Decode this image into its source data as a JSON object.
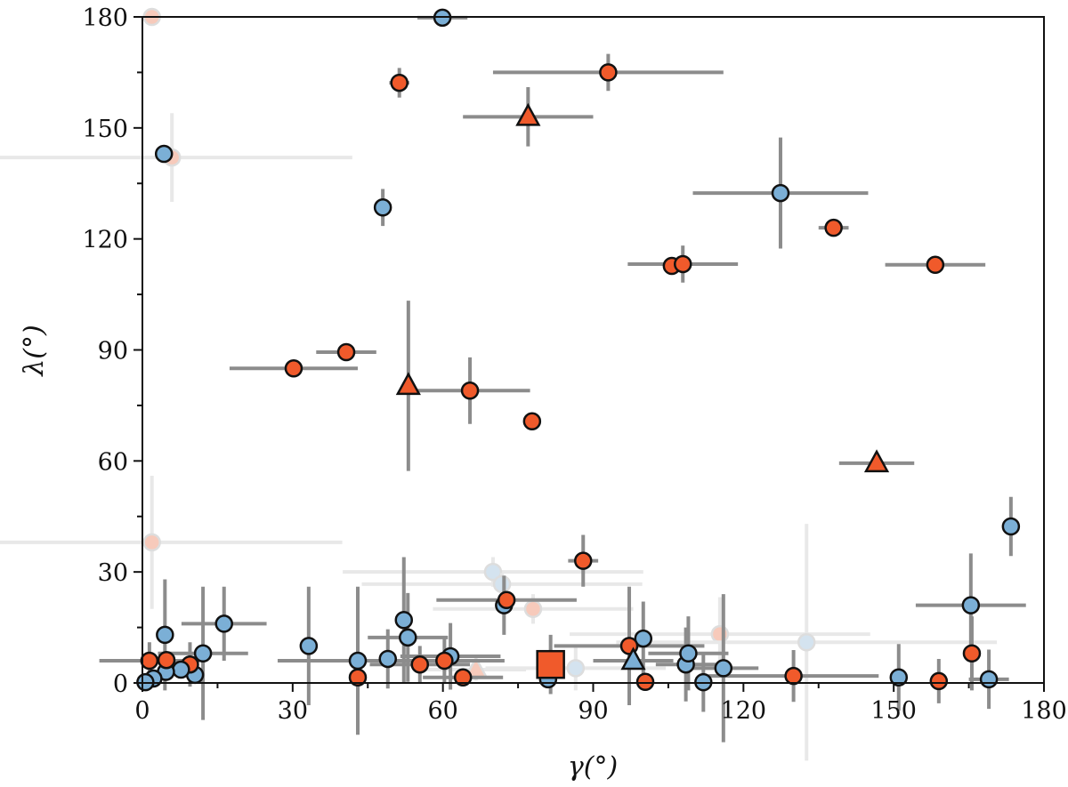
{
  "chart_data": {
    "type": "scatter",
    "xlabel": "γ(°)",
    "ylabel": "λ(°)",
    "xlim": [
      0,
      180
    ],
    "ylim": [
      0,
      180
    ],
    "xticks": [
      0,
      30,
      60,
      90,
      120,
      150,
      180
    ],
    "yticks": [
      0,
      30,
      60,
      90,
      120,
      150,
      180
    ],
    "minor_tick_step": 15,
    "grid": false,
    "legend": "none",
    "colors": {
      "red": "#f05a2b",
      "blue": "#7bafd6",
      "errorbar": "#8c8c8c",
      "faded_errorbar": "#e8e8e8"
    },
    "points": [
      {
        "x": 1.9,
        "y": 180,
        "xerr": 0,
        "yerr": 2,
        "group": "red",
        "marker": "circle",
        "faded": true
      },
      {
        "x": 5.9,
        "y": 142,
        "xerr": 36,
        "yerr": 12,
        "group": "red",
        "marker": "circle",
        "faded": true
      },
      {
        "x": 1.9,
        "y": 38,
        "xerr": 38,
        "yerr": 18,
        "group": "red",
        "marker": "circle",
        "faded": true
      },
      {
        "x": 70,
        "y": 30,
        "xerr": 30,
        "yerr": 4,
        "group": "blue",
        "marker": "circle",
        "faded": true
      },
      {
        "x": 71.8,
        "y": 26.7,
        "xerr": 28,
        "yerr": 3,
        "group": "blue",
        "marker": "circle",
        "faded": true
      },
      {
        "x": 78,
        "y": 20,
        "xerr": 20,
        "yerr": 4,
        "group": "red",
        "marker": "circle",
        "faded": true
      },
      {
        "x": 115.3,
        "y": 13.2,
        "xerr": 30,
        "yerr": 10,
        "group": "red",
        "marker": "circle",
        "faded": true
      },
      {
        "x": 132.6,
        "y": 11,
        "xerr": 38,
        "yerr": 32,
        "group": "blue",
        "marker": "circle",
        "faded": true
      },
      {
        "x": 86.5,
        "y": 4,
        "xerr": 18,
        "yerr": 6,
        "group": "blue",
        "marker": "circle",
        "faded": true
      },
      {
        "x": 66.6,
        "y": 3.6,
        "xerr": 10,
        "yerr": 3,
        "group": "red",
        "marker": "triangle",
        "faded": true
      },
      {
        "x": 59.9,
        "y": 179.8,
        "xerr": 5,
        "yerr": 2,
        "group": "blue",
        "marker": "circle",
        "faded": false
      },
      {
        "x": 51.3,
        "y": 162.2,
        "xerr": 2,
        "yerr": 4,
        "group": "red",
        "marker": "circle",
        "faded": false
      },
      {
        "x": 93,
        "y": 165,
        "xerr": 23,
        "yerr": 5,
        "group": "red",
        "marker": "circle",
        "faded": false
      },
      {
        "x": 77,
        "y": 153,
        "xerr": 13,
        "yerr": 8,
        "group": "red",
        "marker": "triangle",
        "faded": false
      },
      {
        "x": 4.3,
        "y": 143,
        "xerr": 0,
        "yerr": 0,
        "group": "blue",
        "marker": "circle",
        "faded": false
      },
      {
        "x": 48,
        "y": 128.5,
        "xerr": 1.5,
        "yerr": 5,
        "group": "blue",
        "marker": "circle",
        "faded": false
      },
      {
        "x": 127.4,
        "y": 132.4,
        "xerr": 17.5,
        "yerr": 15,
        "group": "blue",
        "marker": "circle",
        "faded": false
      },
      {
        "x": 138,
        "y": 123,
        "xerr": 3,
        "yerr": 2,
        "group": "red",
        "marker": "circle",
        "faded": false
      },
      {
        "x": 105.7,
        "y": 112.7,
        "xerr": 0,
        "yerr": 0,
        "group": "red",
        "marker": "circle",
        "faded": false
      },
      {
        "x": 107.9,
        "y": 113.2,
        "xerr": 11,
        "yerr": 5,
        "group": "red",
        "marker": "circle",
        "faded": false
      },
      {
        "x": 158.3,
        "y": 113,
        "xerr": 10,
        "yerr": 1,
        "group": "red",
        "marker": "circle",
        "faded": false
      },
      {
        "x": 30.2,
        "y": 85,
        "xerr": 12.8,
        "yerr": 0,
        "group": "red",
        "marker": "circle",
        "faded": false
      },
      {
        "x": 40.7,
        "y": 89.4,
        "xerr": 6,
        "yerr": 1,
        "group": "red",
        "marker": "circle",
        "faded": false
      },
      {
        "x": 53.1,
        "y": 80.3,
        "xerr": 1,
        "yerr": 23,
        "group": "red",
        "marker": "triangle",
        "faded": false
      },
      {
        "x": 65.4,
        "y": 79,
        "xerr": 12,
        "yerr": 9,
        "group": "red",
        "marker": "circle",
        "faded": false
      },
      {
        "x": 77.8,
        "y": 70.7,
        "xerr": 1,
        "yerr": 2,
        "group": "red",
        "marker": "circle",
        "faded": false
      },
      {
        "x": 146.6,
        "y": 59.4,
        "xerr": 7.5,
        "yerr": 0,
        "group": "red",
        "marker": "triangle",
        "faded": false
      },
      {
        "x": 88,
        "y": 33,
        "xerr": 3,
        "yerr": 7,
        "group": "red",
        "marker": "circle",
        "faded": false
      },
      {
        "x": 173.4,
        "y": 42.3,
        "xerr": 0,
        "yerr": 8,
        "group": "blue",
        "marker": "circle",
        "faded": false
      },
      {
        "x": 72.2,
        "y": 21,
        "xerr": 0,
        "yerr": 8,
        "group": "blue",
        "marker": "circle",
        "faded": false
      },
      {
        "x": 72.7,
        "y": 22.4,
        "xerr": 14,
        "yerr": 2,
        "group": "red",
        "marker": "circle",
        "faded": false
      },
      {
        "x": 165.4,
        "y": 21,
        "xerr": 11,
        "yerr": 14,
        "group": "blue",
        "marker": "circle",
        "faded": false
      },
      {
        "x": 165.6,
        "y": 8,
        "xerr": 0,
        "yerr": 10,
        "group": "red",
        "marker": "circle",
        "faded": false
      },
      {
        "x": 169,
        "y": 1,
        "xerr": 4,
        "yerr": 8,
        "group": "blue",
        "marker": "circle",
        "faded": false
      },
      {
        "x": 159,
        "y": 0.5,
        "xerr": 0,
        "yerr": 6,
        "group": "red",
        "marker": "circle",
        "faded": false
      },
      {
        "x": 151,
        "y": 1.5,
        "xerr": 0,
        "yerr": 9,
        "group": "blue",
        "marker": "circle",
        "faded": false
      },
      {
        "x": 130,
        "y": 1.9,
        "xerr": 17,
        "yerr": 7,
        "group": "red",
        "marker": "circle",
        "faded": false
      },
      {
        "x": 116,
        "y": 4,
        "xerr": 7,
        "yerr": 20,
        "group": "blue",
        "marker": "circle",
        "faded": false
      },
      {
        "x": 112,
        "y": 0.2,
        "xerr": 0,
        "yerr": 8,
        "group": "blue",
        "marker": "circle",
        "faded": false
      },
      {
        "x": 108.5,
        "y": 5,
        "xerr": 6,
        "yerr": 10,
        "group": "blue",
        "marker": "circle",
        "faded": false
      },
      {
        "x": 109,
        "y": 8,
        "xerr": 8,
        "yerr": 10,
        "group": "blue",
        "marker": "circle",
        "faded": false
      },
      {
        "x": 100.4,
        "y": 0.3,
        "xerr": 0,
        "yerr": 0,
        "group": "red",
        "marker": "circle",
        "faded": false
      },
      {
        "x": 100,
        "y": 12,
        "xerr": 0,
        "yerr": 10,
        "group": "blue",
        "marker": "circle",
        "faded": false
      },
      {
        "x": 97.2,
        "y": 10,
        "xerr": 15,
        "yerr": 16,
        "group": "red",
        "marker": "circle",
        "faded": false
      },
      {
        "x": 98,
        "y": 6,
        "xerr": 8,
        "yerr": 0,
        "group": "blue",
        "marker": "triangle",
        "faded": false
      },
      {
        "x": 81,
        "y": 1,
        "xerr": 0,
        "yerr": 0,
        "group": "blue",
        "marker": "circle",
        "faded": false
      },
      {
        "x": 81.5,
        "y": 5,
        "xerr": 0,
        "yerr": 8,
        "group": "red",
        "marker": "square",
        "faded": false
      },
      {
        "x": 64,
        "y": 1.5,
        "xerr": 8,
        "yerr": 0,
        "group": "red",
        "marker": "circle",
        "faded": false
      },
      {
        "x": 61.5,
        "y": 7.2,
        "xerr": 10,
        "yerr": 9,
        "group": "blue",
        "marker": "circle",
        "faded": false
      },
      {
        "x": 60.3,
        "y": 6,
        "xerr": 12,
        "yerr": 6,
        "group": "red",
        "marker": "circle",
        "faded": false
      },
      {
        "x": 55.4,
        "y": 5,
        "xerr": 10,
        "yerr": 5,
        "group": "red",
        "marker": "circle",
        "faded": false
      },
      {
        "x": 53,
        "y": 12.3,
        "xerr": 8,
        "yerr": 12,
        "group": "blue",
        "marker": "circle",
        "faded": false
      },
      {
        "x": 52.2,
        "y": 17,
        "xerr": 0,
        "yerr": 17,
        "group": "blue",
        "marker": "circle",
        "faded": false
      },
      {
        "x": 49,
        "y": 6.5,
        "xerr": 0,
        "yerr": 8,
        "group": "blue",
        "marker": "circle",
        "faded": false
      },
      {
        "x": 43,
        "y": 6,
        "xerr": 16,
        "yerr": 20,
        "group": "blue",
        "marker": "circle",
        "faded": false
      },
      {
        "x": 43,
        "y": 1.5,
        "xerr": 0,
        "yerr": 0,
        "group": "red",
        "marker": "circle",
        "faded": false
      },
      {
        "x": 33.2,
        "y": 10,
        "xerr": 0,
        "yerr": 16,
        "group": "blue",
        "marker": "circle",
        "faded": false
      },
      {
        "x": 16.3,
        "y": 16,
        "xerr": 8.5,
        "yerr": 10,
        "group": "blue",
        "marker": "circle",
        "faded": false
      },
      {
        "x": 12.1,
        "y": 8,
        "xerr": 9,
        "yerr": 18,
        "group": "blue",
        "marker": "circle",
        "faded": false
      },
      {
        "x": 10.5,
        "y": 2.2,
        "xerr": 0,
        "yerr": 0,
        "group": "blue",
        "marker": "circle",
        "faded": false
      },
      {
        "x": 9.5,
        "y": 5,
        "xerr": 0,
        "yerr": 6,
        "group": "red",
        "marker": "circle",
        "faded": false
      },
      {
        "x": 7.7,
        "y": 3.6,
        "xerr": 4,
        "yerr": 0,
        "group": "blue",
        "marker": "circle",
        "faded": false
      },
      {
        "x": 4.7,
        "y": 3,
        "xerr": 3,
        "yerr": 0,
        "group": "blue",
        "marker": "circle",
        "faded": false
      },
      {
        "x": 4.8,
        "y": 6.2,
        "xerr": 0,
        "yerr": 0,
        "group": "red",
        "marker": "circle",
        "faded": false
      },
      {
        "x": 4.5,
        "y": 13,
        "xerr": 0,
        "yerr": 15,
        "group": "blue",
        "marker": "circle",
        "faded": false
      },
      {
        "x": 2.2,
        "y": 1.2,
        "xerr": 0,
        "yerr": 0,
        "group": "blue",
        "marker": "circle",
        "faded": false
      },
      {
        "x": 1.4,
        "y": 6,
        "xerr": 10,
        "yerr": 5,
        "group": "red",
        "marker": "circle",
        "faded": false
      },
      {
        "x": 0.6,
        "y": 0.2,
        "xerr": 0,
        "yerr": 0,
        "group": "blue",
        "marker": "circle",
        "faded": false
      }
    ]
  }
}
